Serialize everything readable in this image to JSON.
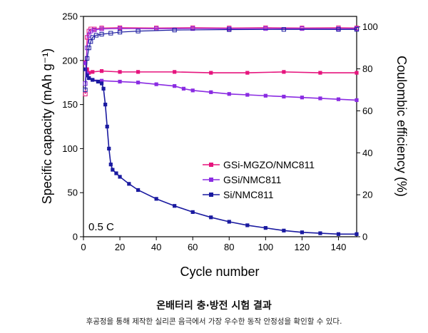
{
  "chart_data": {
    "type": "scatter",
    "xlabel": "Cycle number",
    "ylabel_left": "Specific capacity (mAh g⁻¹)",
    "ylabel_right": "Coulombic efficiency (%)",
    "xlim": [
      0,
      150
    ],
    "ylim_left": [
      0,
      250
    ],
    "ylim_right": [
      0,
      105
    ],
    "x_ticks": [
      0,
      20,
      40,
      60,
      80,
      100,
      120,
      140
    ],
    "y_left_ticks": [
      0,
      50,
      100,
      150,
      200,
      250
    ],
    "y_right_ticks": [
      0,
      20,
      40,
      60,
      80,
      100
    ],
    "annotation": "0.5 C",
    "legend_position": "middle-right",
    "grid": false,
    "series": [
      {
        "name": "GSi-MGZO/NMC811",
        "color": "#e6147d",
        "axis": "left",
        "x": [
          1,
          2,
          3,
          5,
          10,
          20,
          30,
          50,
          70,
          90,
          110,
          130,
          150
        ],
        "y": [
          198,
          190,
          186,
          187,
          188,
          187,
          187,
          187,
          186,
          186,
          187,
          186,
          186
        ]
      },
      {
        "name": "GSi/NMC811",
        "color": "#8a2be2",
        "axis": "left",
        "x": [
          1,
          2,
          3,
          5,
          10,
          20,
          30,
          40,
          50,
          55,
          60,
          70,
          80,
          90,
          100,
          110,
          120,
          130,
          140,
          150
        ],
        "y": [
          197,
          185,
          180,
          178,
          177,
          176,
          175,
          173,
          171,
          168,
          166,
          164,
          162,
          161,
          160,
          159,
          158,
          157,
          156,
          155
        ]
      },
      {
        "name": "Si/NMC811",
        "color": "#1a1aa0",
        "axis": "left",
        "x": [
          1,
          2,
          3,
          5,
          8,
          10,
          11,
          12,
          13,
          14,
          15,
          16,
          18,
          20,
          25,
          30,
          40,
          50,
          60,
          70,
          80,
          90,
          100,
          110,
          120,
          130,
          140,
          150
        ],
        "y": [
          190,
          183,
          180,
          178,
          176,
          174,
          168,
          150,
          125,
          100,
          82,
          76,
          72,
          68,
          60,
          53,
          43,
          35,
          28,
          22,
          17,
          13,
          10,
          7,
          5,
          4,
          3,
          3
        ]
      },
      {
        "name": "GSi-MGZO/NMC811 CE",
        "color": "#e6147d",
        "axis": "right",
        "x": [
          1,
          2,
          3,
          4,
          6,
          10,
          20,
          40,
          60,
          80,
          100,
          120,
          140,
          150
        ],
        "y": [
          68,
          95,
          98,
          99,
          99,
          99.5,
          99.6,
          99.5,
          99.6,
          99.5,
          99.6,
          99.5,
          99.6,
          99.5
        ]
      },
      {
        "name": "GSi/NMC811 CE",
        "color": "#8a2be2",
        "axis": "right",
        "x": [
          1,
          2,
          3,
          4,
          6,
          10,
          20,
          40,
          60,
          80,
          100,
          120,
          140,
          150
        ],
        "y": [
          73,
          90,
          96,
          98,
          98.5,
          99,
          99.2,
          99.1,
          99.2,
          99.1,
          99.2,
          99.2,
          99.1,
          99.2
        ]
      },
      {
        "name": "Si/NMC811 CE",
        "color": "#1a1aa0",
        "axis": "right",
        "x": [
          1,
          2,
          3,
          4,
          5,
          7,
          10,
          15,
          20,
          30,
          50,
          80,
          110,
          140,
          150
        ],
        "y": [
          70,
          85,
          90,
          93,
          95,
          96,
          96.5,
          97,
          97.5,
          98,
          98.5,
          98.7,
          98.8,
          98.8,
          98.8
        ]
      }
    ]
  },
  "caption": {
    "title": "온배터리 충·방전 시험 결과",
    "subtitle": "후공정을 통해 제작한 실리콘 음극에서 가장 우수한 동작 안정성을 확인할 수 있다."
  }
}
